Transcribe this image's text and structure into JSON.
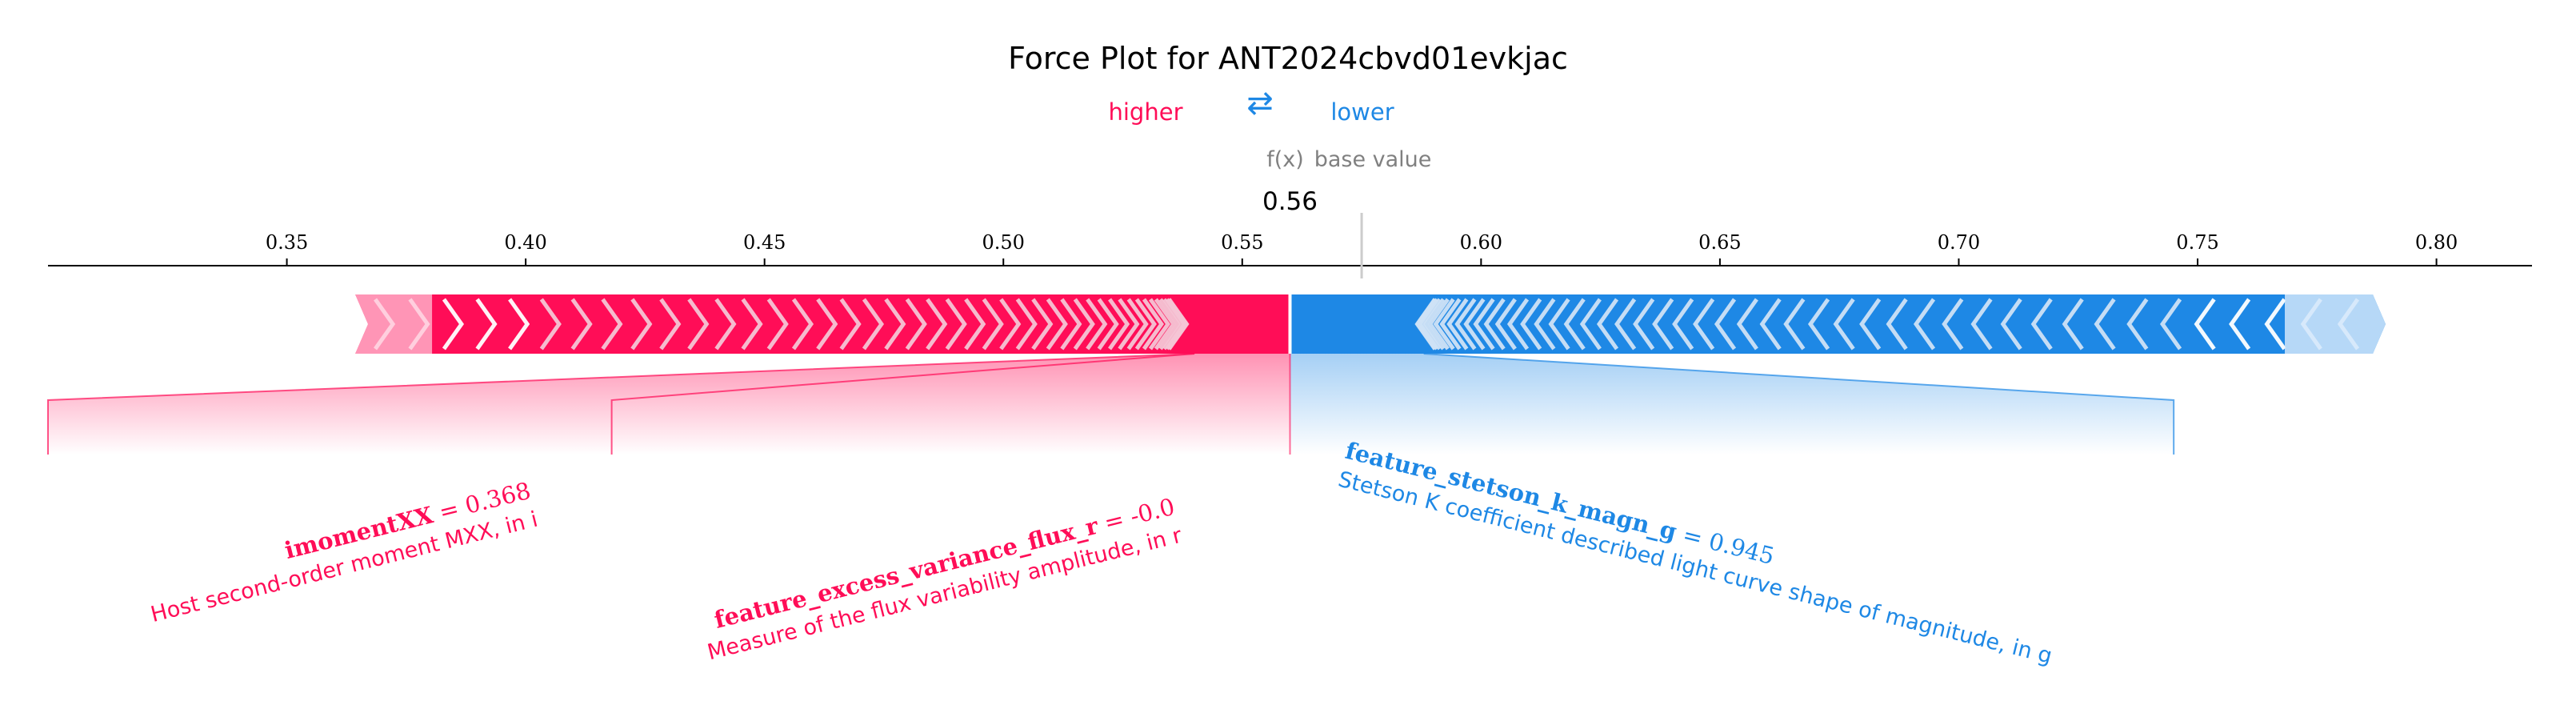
{
  "chart_data": {
    "type": "force",
    "title": "Force Plot for ANT2024cbvd01evkjac",
    "legend": {
      "higher": "higher",
      "lower": "lower",
      "arrows": "⇄"
    },
    "output_label": "f(x)",
    "base_label": "base value",
    "output_value": 0.56,
    "output_value_text": "0.56",
    "base_value": 0.575,
    "xlim": [
      0.3,
      0.82
    ],
    "ticks": [
      0.35,
      0.4,
      0.45,
      0.5,
      0.55,
      0.6,
      0.65,
      0.7,
      0.75,
      0.8
    ],
    "tick_labels": [
      "0.35",
      "0.40",
      "0.45",
      "0.50",
      "0.55",
      "0.60",
      "0.65",
      "0.70",
      "0.75",
      "0.80"
    ],
    "positive_span": [
      0.367,
      0.56
    ],
    "negative_span": [
      0.56,
      0.785
    ],
    "features": [
      {
        "name": "imomentXX",
        "value_text": "= 0.368",
        "description": "Host second-order moment MXX, in i",
        "direction": "higher",
        "start": 0.54,
        "end": 0.3
      },
      {
        "name": "feature_excess_variance_flux_r",
        "value_text": "= -0.0",
        "description": "Measure of the flux variability amplitude, in r",
        "direction": "higher",
        "start": 0.54,
        "end": 0.418
      },
      {
        "name": "feature_stetson_k_magn_g",
        "value_text": "= 0.945",
        "description": "Stetson K coefficient described light curve shape of magnitude, in g",
        "direction": "lower",
        "start": 0.588,
        "end": 0.745
      }
    ],
    "colors": {
      "higher": "#ff0d57",
      "higher_light": "#ffc3d5",
      "lower": "#1e88e5",
      "lower_light": "#d1e6fa",
      "axis": "#000000",
      "muted": "#808080"
    }
  }
}
